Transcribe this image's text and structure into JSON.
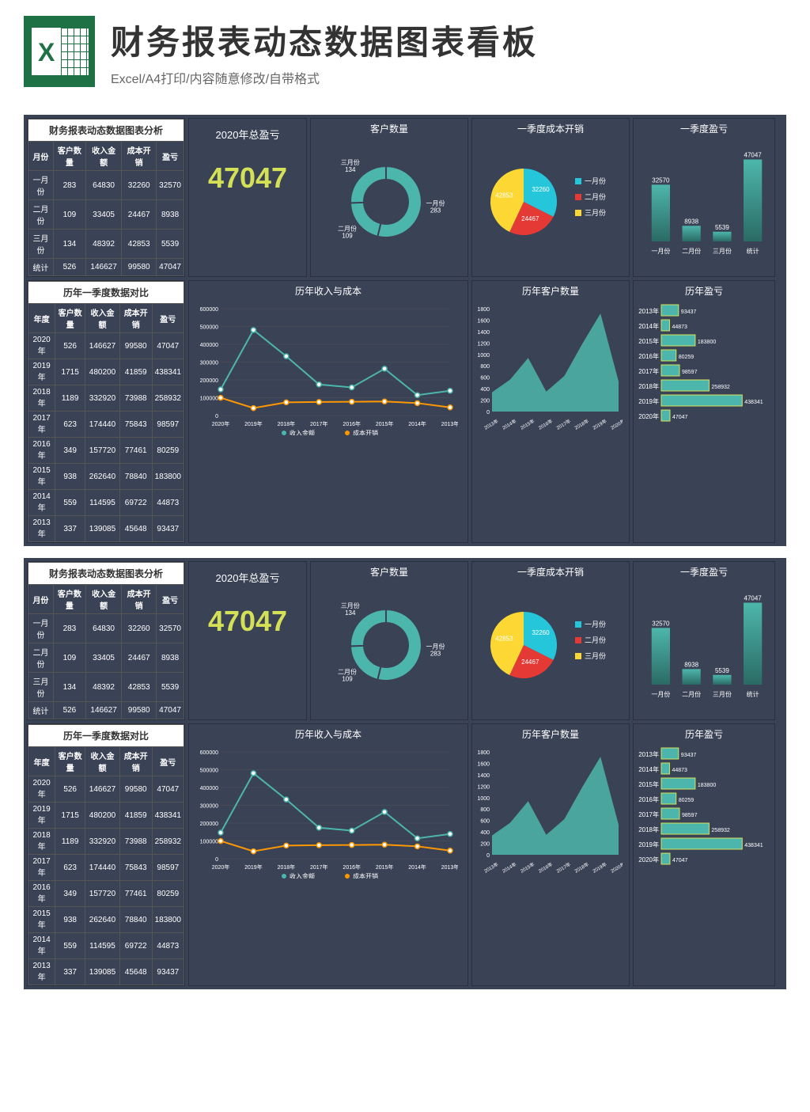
{
  "header": {
    "main_title": "财务报表动态数据图表看板",
    "subtitle": "Excel/A4打印/内容随意修改/自带格式"
  },
  "colors": {
    "bg": "#3a4256",
    "panel_border": "#2a3040",
    "accent": "#d4e157",
    "teal": "#4db6ac",
    "orange": "#ff9800",
    "red": "#e53935",
    "yellow": "#fdd835",
    "cyan": "#26c6da",
    "text": "#ffffff"
  },
  "table1": {
    "title": "财务报表动态数据图表分析",
    "columns": [
      "月份",
      "客户数量",
      "收入金额",
      "成本开销",
      "盈亏"
    ],
    "rows": [
      [
        "一月份",
        "283",
        "64830",
        "32260",
        "32570"
      ],
      [
        "二月份",
        "109",
        "33405",
        "24467",
        "8938"
      ],
      [
        "三月份",
        "134",
        "48392",
        "42853",
        "5539"
      ],
      [
        "统计",
        "526",
        "146627",
        "99580",
        "47047"
      ]
    ]
  },
  "table2": {
    "title": "历年一季度数据对比",
    "columns": [
      "年度",
      "客户数量",
      "收入金额",
      "成本开销",
      "盈亏"
    ],
    "rows": [
      [
        "2020年",
        "526",
        "146627",
        "99580",
        "47047"
      ],
      [
        "2019年",
        "1715",
        "480200",
        "41859",
        "438341"
      ],
      [
        "2018年",
        "1189",
        "332920",
        "73988",
        "258932"
      ],
      [
        "2017年",
        "623",
        "174440",
        "75843",
        "98597"
      ],
      [
        "2016年",
        "349",
        "157720",
        "77461",
        "80259"
      ],
      [
        "2015年",
        "938",
        "262640",
        "78840",
        "183800"
      ],
      [
        "2014年",
        "559",
        "114595",
        "69722",
        "44873"
      ],
      [
        "2013年",
        "337",
        "139085",
        "45648",
        "93437"
      ]
    ]
  },
  "kpi": {
    "title": "2020年总盈亏",
    "value": "47047"
  },
  "donut": {
    "title": "客户数量",
    "labels": [
      "一月份",
      "二月份",
      "三月份"
    ],
    "values": [
      283,
      109,
      134
    ],
    "colors": [
      "#4db6ac",
      "#4db6ac",
      "#4db6ac"
    ],
    "label_text": [
      "一月份 283",
      "二月份 109",
      "三月份 134"
    ]
  },
  "pie": {
    "title": "一季度成本开销",
    "labels": [
      "一月份",
      "二月份",
      "三月份"
    ],
    "values": [
      32260,
      24467,
      42853
    ],
    "colors": [
      "#26c6da",
      "#e53935",
      "#fdd835"
    ],
    "legend": [
      "一月份",
      "二月份",
      "三月份"
    ]
  },
  "bar_quarter": {
    "title": "一季度盈亏",
    "categories": [
      "一月份",
      "二月份",
      "三月份",
      "统计"
    ],
    "values": [
      32570,
      8938,
      5539,
      47047
    ],
    "labels": [
      "32570",
      "8938",
      "5539",
      "47047"
    ],
    "color": "#4db6ac",
    "ylim": [
      0,
      50000
    ]
  },
  "line_chart": {
    "title": "历年收入与成本",
    "x_labels": [
      "2020年",
      "2019年",
      "2018年",
      "2017年",
      "2016年",
      "2015年",
      "2014年",
      "2013年"
    ],
    "series": [
      {
        "name": "收入金额",
        "color": "#4db6ac",
        "values": [
          146627,
          480200,
          332920,
          174440,
          157720,
          262640,
          114595,
          139085
        ]
      },
      {
        "name": "成本开销",
        "color": "#ff9800",
        "values": [
          99580,
          41859,
          73988,
          75843,
          77461,
          78840,
          69722,
          45648
        ]
      }
    ],
    "ylim": [
      0,
      600000
    ],
    "ytick_step": 100000,
    "legend": [
      "收入金额",
      "成本开销"
    ]
  },
  "area_chart": {
    "title": "历年客户数量",
    "x_labels": [
      "2013年",
      "2014年",
      "2015年",
      "2016年",
      "2017年",
      "2018年",
      "2019年",
      "2020年"
    ],
    "values": [
      337,
      559,
      938,
      349,
      623,
      1189,
      1715,
      526
    ],
    "color": "#4db6ac",
    "ylim": [
      0,
      1800
    ],
    "ytick_step": 200
  },
  "hbar_chart": {
    "title": "历年盈亏",
    "categories": [
      "2013年",
      "2014年",
      "2015年",
      "2016年",
      "2017年",
      "2018年",
      "2019年",
      "2020年"
    ],
    "values": [
      93437,
      44873,
      183800,
      80259,
      98597,
      258932,
      438341,
      47047
    ],
    "labels": [
      "93437",
      "44873",
      "183800",
      "80259",
      "98597",
      "258932",
      "438341",
      "47047"
    ],
    "color": "#4db6ac",
    "border": "#d4e157",
    "xlim": [
      0,
      450000
    ]
  }
}
